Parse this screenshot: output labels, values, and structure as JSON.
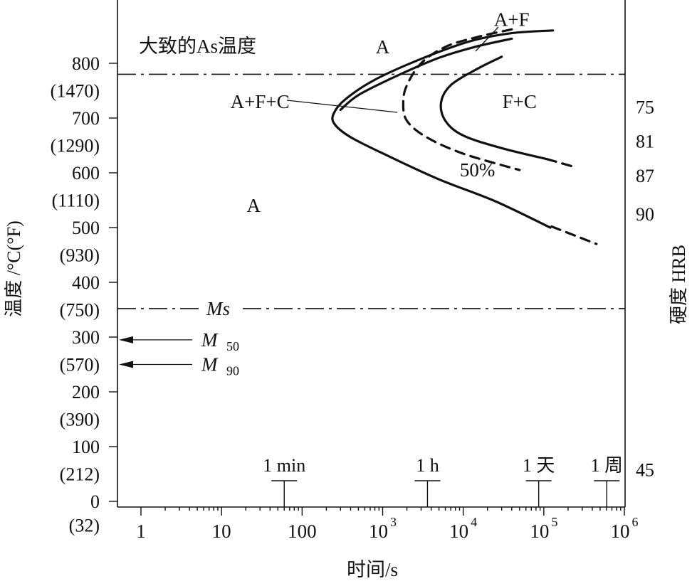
{
  "chart_data": {
    "type": "line",
    "title": "大致的As温度",
    "xlabel": "时间/s",
    "ylabel": "温度 /°C(°F)",
    "ylabel_right": "硬度 HRB",
    "x_scale": "log",
    "xlim": [
      0.5,
      1000000
    ],
    "ylim": [
      0,
      880
    ],
    "x_ticks": [
      {
        "value": 1,
        "label": "1"
      },
      {
        "value": 10,
        "label": "10"
      },
      {
        "value": 100,
        "label": "100"
      },
      {
        "value": 1000,
        "label": "10",
        "sup": "3"
      },
      {
        "value": 10000,
        "label": "10",
        "sup": "4"
      },
      {
        "value": 100000,
        "label": "10",
        "sup": "5"
      },
      {
        "value": 1000000,
        "label": "10",
        "sup": "6"
      }
    ],
    "y_ticks": [
      {
        "value": 800,
        "label": "800"
      },
      {
        "value": 700,
        "label": "700"
      },
      {
        "value": 600,
        "label": "600"
      },
      {
        "value": 500,
        "label": "500"
      },
      {
        "value": 400,
        "label": "400"
      },
      {
        "value": 300,
        "label": "300"
      },
      {
        "value": 200,
        "label": "200"
      },
      {
        "value": 100,
        "label": "100"
      },
      {
        "value": 0,
        "label": "0"
      }
    ],
    "y_ticks_f": [
      {
        "value": 750,
        "label": "(1470)"
      },
      {
        "value": 650,
        "label": "(1290)"
      },
      {
        "value": 550,
        "label": "(1110)"
      },
      {
        "value": 450,
        "label": "(930)"
      },
      {
        "value": 350,
        "label": "(750)"
      },
      {
        "value": 250,
        "label": "(570)"
      },
      {
        "value": 150,
        "label": "(390)"
      },
      {
        "value": 50,
        "label": "(212)"
      },
      {
        "value": -50,
        "label": "(32)"
      }
    ],
    "hardness_labels": [
      {
        "value": 720,
        "label": "75"
      },
      {
        "value": 658,
        "label": "81"
      },
      {
        "value": 595,
        "label": "87"
      },
      {
        "value": 525,
        "label": "90"
      },
      {
        "value": 58,
        "label": "45"
      }
    ],
    "reference_lines": [
      {
        "name": "As",
        "y": 780
      },
      {
        "name": "Ms",
        "y": 352,
        "label": "Ms"
      }
    ],
    "arrows": [
      {
        "label": "M",
        "sub": "50",
        "y": 295
      },
      {
        "label": "M",
        "sub": "90",
        "y": 250
      }
    ],
    "time_markers": [
      {
        "label": "1 min",
        "x": 60
      },
      {
        "label": "1 h",
        "x": 3600
      },
      {
        "label": "1 天",
        "x": 86400
      },
      {
        "label": "1 周",
        "x": 604800
      }
    ],
    "series": [
      {
        "style": "solid",
        "points": [
          [
            130000,
            860
          ],
          [
            40000,
            855
          ],
          [
            12000,
            840
          ],
          [
            3000,
            808
          ],
          [
            800,
            770
          ],
          [
            350,
            735
          ],
          [
            250,
            710
          ],
          [
            250,
            690
          ],
          [
            400,
            665
          ],
          [
            1200,
            630
          ],
          [
            5000,
            588
          ],
          [
            25000,
            548
          ],
          [
            120000,
            500
          ]
        ],
        "dashed_tail": [
          [
            125000,
            502
          ],
          [
            450000,
            470
          ]
        ]
      },
      {
        "style": "solid",
        "points": [
          [
            40000,
            845
          ],
          [
            14000,
            830
          ],
          [
            5000,
            810
          ],
          [
            1500,
            777
          ],
          [
            500,
            742
          ],
          [
            300,
            715
          ]
        ]
      },
      {
        "style": "dashed",
        "points": [
          [
            40000,
            862
          ],
          [
            15000,
            848
          ],
          [
            6000,
            830
          ],
          [
            3000,
            800
          ],
          [
            2000,
            760
          ],
          [
            1800,
            728
          ],
          [
            2000,
            695
          ],
          [
            3500,
            665
          ],
          [
            10000,
            635
          ],
          [
            50000,
            605
          ]
        ]
      },
      {
        "style": "solid",
        "points": [
          [
            30000,
            812
          ],
          [
            15000,
            790
          ],
          [
            7000,
            760
          ],
          [
            5300,
            728
          ],
          [
            6000,
            695
          ],
          [
            10000,
            668
          ],
          [
            30000,
            645
          ],
          [
            110000,
            625
          ]
        ],
        "dashed_tail": [
          [
            110000,
            625
          ],
          [
            250000,
            610
          ]
        ]
      }
    ],
    "annotations": [
      {
        "text": "A",
        "x": 1000,
        "y": 830
      },
      {
        "text": "A+F",
        "x": 40000,
        "y": 880
      },
      {
        "text": "A+F+C",
        "x": 30,
        "y": 730
      },
      {
        "text": "F+C",
        "x": 50000,
        "y": 730
      },
      {
        "text": "50%",
        "x": 15000,
        "y": 605
      },
      {
        "text": "A",
        "x": 25,
        "y": 540
      }
    ]
  }
}
